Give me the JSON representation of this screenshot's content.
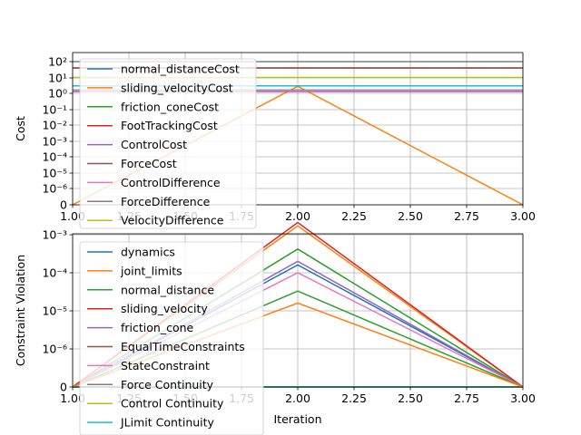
{
  "chart_data": [
    {
      "type": "line",
      "xlabel": "",
      "ylabel": "Cost",
      "xlim": [
        1.0,
        3.0
      ],
      "x_ticks": [
        "1.00",
        "1.25",
        "1.50",
        "1.75",
        "2.00",
        "2.25",
        "2.50",
        "2.75",
        "3.00"
      ],
      "y_scale": "symlog",
      "y_tick_labels": [
        "0",
        "10⁻⁶",
        "10⁻⁵",
        "10⁻⁴",
        "10⁻³",
        "10⁻²",
        "10⁻¹",
        "10⁰",
        "10¹",
        "10²"
      ],
      "grid": true,
      "legend_placement": "upper-left",
      "x": [
        1,
        2,
        3
      ],
      "series": [
        {
          "name": "normal_distanceCost",
          "color": "#1f77b4",
          "values": [
            1.5,
            1.5,
            1.5
          ]
        },
        {
          "name": "sliding_velocityCost",
          "color": "#ff7f0e",
          "values": [
            0,
            2.8,
            0
          ]
        },
        {
          "name": "friction_coneCost",
          "color": "#2ca02c",
          "values": [
            1.6,
            1.6,
            1.6
          ]
        },
        {
          "name": "FootTrackingCost",
          "color": "#d62728",
          "values": [
            40,
            40,
            40
          ]
        },
        {
          "name": "ControlCost",
          "color": "#9467bd",
          "values": [
            1.3,
            1.3,
            1.3
          ]
        },
        {
          "name": "ForceCost",
          "color": "#8c564b",
          "values": [
            40,
            40,
            40
          ]
        },
        {
          "name": "ControlDifference",
          "color": "#e377c2",
          "values": [
            1.5,
            1.5,
            1.5
          ]
        },
        {
          "name": "ForceDifference",
          "color": "#7f7f7f",
          "values": [
            100,
            100,
            100
          ]
        },
        {
          "name": "VelocityDifference",
          "color": "#bcbd22",
          "values": [
            10,
            10,
            10
          ]
        },
        {
          "name": "",
          "color": "#17becf",
          "values": [
            3,
            3,
            3
          ]
        }
      ]
    },
    {
      "type": "line",
      "xlabel": "Iteration",
      "ylabel": "Constraint Violation",
      "xlim": [
        1.0,
        3.0
      ],
      "x_ticks": [
        "1.00",
        "1.25",
        "1.50",
        "1.75",
        "2.00",
        "2.25",
        "2.50",
        "2.75",
        "3.00"
      ],
      "y_scale": "symlog",
      "y_tick_labels": [
        "0",
        "10⁻⁶",
        "10⁻⁵",
        "10⁻⁴",
        "10⁻³"
      ],
      "grid": true,
      "legend_placement": "upper-left",
      "x": [
        1,
        2,
        3
      ],
      "series": [
        {
          "name": "dynamics",
          "color": "#1f77b4",
          "values": [
            0,
            0.00016,
            0
          ]
        },
        {
          "name": "joint_limits",
          "color": "#ff7f0e",
          "values": [
            0,
            0.0017,
            0
          ]
        },
        {
          "name": "normal_distance",
          "color": "#2ca02c",
          "values": [
            0,
            0.00042,
            0
          ]
        },
        {
          "name": "sliding_velocity",
          "color": "#d62728",
          "values": [
            0,
            0.0021,
            0
          ]
        },
        {
          "name": "friction_cone",
          "color": "#9467bd",
          "values": [
            0,
            0.0002,
            0
          ]
        },
        {
          "name": "EqualTimeConstraints",
          "color": "#8c564b",
          "values": [
            0,
            0,
            0
          ]
        },
        {
          "name": "StateConstraint",
          "color": "#e377c2",
          "values": [
            0,
            0.0001,
            0
          ]
        },
        {
          "name": "Force Continuity",
          "color": "#7f7f7f",
          "values": [
            0,
            0,
            0
          ]
        },
        {
          "name": "Control Continuity",
          "color": "#bcbd22",
          "values": [
            0,
            0,
            0
          ]
        },
        {
          "name": "JLimit Continuity",
          "color": "#17becf",
          "values": [
            0,
            0,
            0
          ]
        },
        {
          "name": "",
          "color": "#2ca02c",
          "values": [
            0,
            3.3e-05,
            0
          ]
        },
        {
          "name": "",
          "color": "#ff7f0e",
          "values": [
            0,
            1.6e-05,
            0
          ]
        }
      ]
    }
  ]
}
